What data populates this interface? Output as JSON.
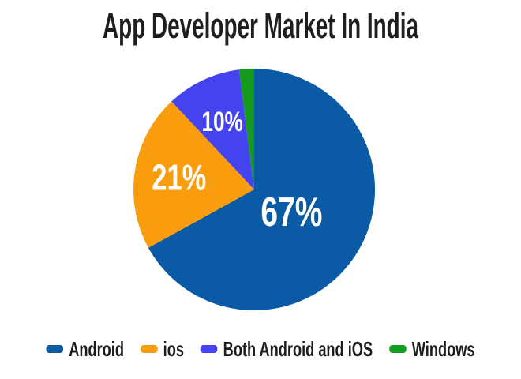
{
  "title": "App Developer Market In India",
  "colors": {
    "background": "#ffffff",
    "title_text": "#1e1e1e",
    "slice_label_text": "#ffffff",
    "legend_text": "#1c1c1c"
  },
  "chart_data": {
    "type": "pie",
    "title": "App Developer Market In India",
    "categories": [
      "Android",
      "ios",
      "Both Android and iOS",
      "Windows"
    ],
    "values": [
      67,
      21,
      10,
      2
    ],
    "slice_labels": [
      "67%",
      "21%",
      "10%",
      ""
    ],
    "colors": [
      "#0b5aa5",
      "#f99d0e",
      "#4343f0",
      "#169a1d"
    ],
    "start_angle_deg": 0,
    "direction": "clockwise",
    "legend_position": "bottom",
    "grid": false
  }
}
